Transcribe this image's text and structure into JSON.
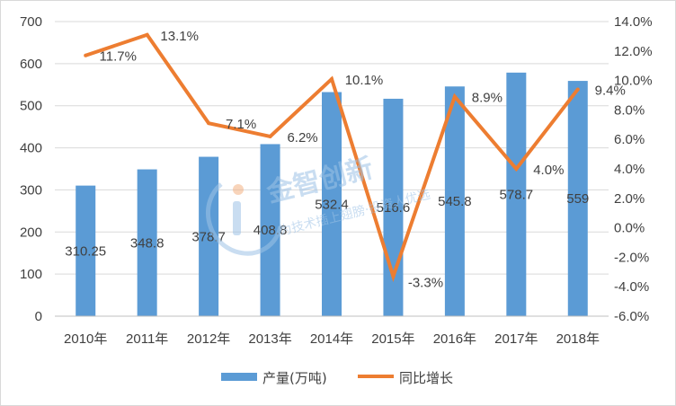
{
  "chart_data": {
    "type": "bar+line",
    "categories": [
      "2010年",
      "2011年",
      "2012年",
      "2013年",
      "2014年",
      "2015年",
      "2016年",
      "2017年",
      "2018年"
    ],
    "series": [
      {
        "name": "产量(万吨)",
        "type": "bar",
        "axis": "left",
        "values": [
          310.25,
          348.8,
          378.7,
          408.8,
          532.4,
          516.6,
          545.8,
          578.7,
          559
        ],
        "labels": [
          "310.25",
          "348.8",
          "378.7",
          "408.8",
          "532.4",
          "516.6",
          "545.8",
          "578.7",
          "559"
        ],
        "color": "#5b9bd5"
      },
      {
        "name": "同比增长",
        "type": "line",
        "axis": "right",
        "values": [
          11.7,
          13.1,
          7.1,
          6.2,
          10.1,
          -3.3,
          8.9,
          4.0,
          9.4
        ],
        "labels": [
          "11.7%",
          "13.1%",
          "7.1%",
          "6.2%",
          "10.1%",
          "-3.3%",
          "8.9%",
          "4.0%",
          "9.4%"
        ],
        "color": "#ed7d31"
      }
    ],
    "y_left": {
      "min": 0,
      "max": 700,
      "ticks": [
        "0",
        "100",
        "200",
        "300",
        "400",
        "500",
        "600",
        "700"
      ]
    },
    "y_right": {
      "min": -6,
      "max": 14,
      "ticks": [
        "-6.0%",
        "-4.0%",
        "-2.0%",
        "0.0%",
        "2.0%",
        "4.0%",
        "6.0%",
        "8.0%",
        "10.0%",
        "12.0%",
        "14.0%"
      ]
    },
    "grid": true,
    "legend": "bottom",
    "title": ""
  },
  "watermark": {
    "text": "金智创新",
    "subtext": "为技术插上翅膀·投资人优选"
  }
}
